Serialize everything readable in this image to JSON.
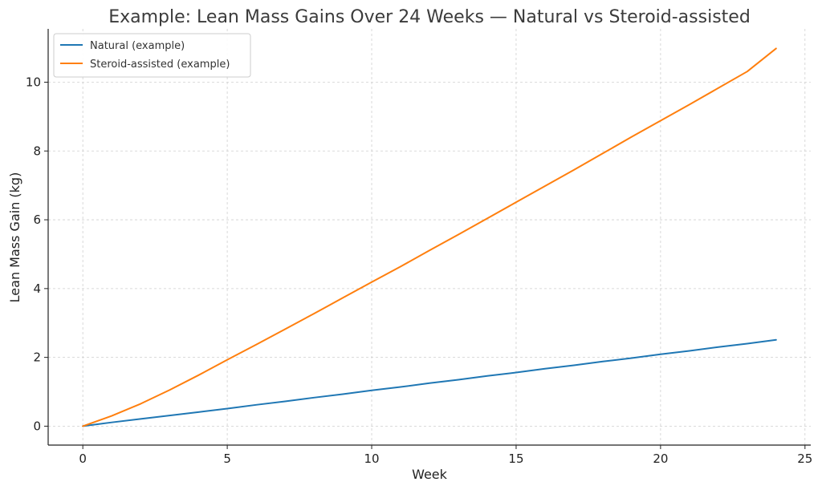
{
  "chart_data": {
    "type": "line",
    "title": "Example: Lean Mass Gains Over 24 Weeks — Natural vs Steroid-assisted",
    "xlabel": "Week",
    "ylabel": "Lean Mass Gain (kg)",
    "xlim": [
      -1.2,
      25.2
    ],
    "ylim": [
      -0.55,
      11.55
    ],
    "xticks": [
      0,
      5,
      10,
      15,
      20,
      25
    ],
    "yticks": [
      0,
      2,
      4,
      6,
      8,
      10
    ],
    "grid": true,
    "legend_position": "top-left",
    "x": [
      0,
      1,
      2,
      3,
      4,
      5,
      6,
      7,
      8,
      9,
      10,
      11,
      12,
      13,
      14,
      15,
      16,
      17,
      18,
      19,
      20,
      21,
      22,
      23,
      24
    ],
    "series": [
      {
        "name": "Natural (example)",
        "color": "#1f77b4",
        "values": [
          0,
          0.11,
          0.21,
          0.31,
          0.41,
          0.51,
          0.62,
          0.72,
          0.83,
          0.93,
          1.04,
          1.14,
          1.25,
          1.35,
          1.46,
          1.56,
          1.67,
          1.77,
          1.88,
          1.98,
          2.09,
          2.19,
          2.3,
          2.4,
          2.51
        ]
      },
      {
        "name": "Steroid-assisted (example)",
        "color": "#ff7f0e",
        "values": [
          0,
          0.3,
          0.65,
          1.05,
          1.48,
          1.93,
          2.37,
          2.82,
          3.27,
          3.73,
          4.19,
          4.64,
          5.11,
          5.57,
          6.04,
          6.51,
          6.98,
          7.45,
          7.93,
          8.41,
          8.88,
          9.35,
          9.83,
          10.31,
          10.98
        ]
      }
    ]
  }
}
